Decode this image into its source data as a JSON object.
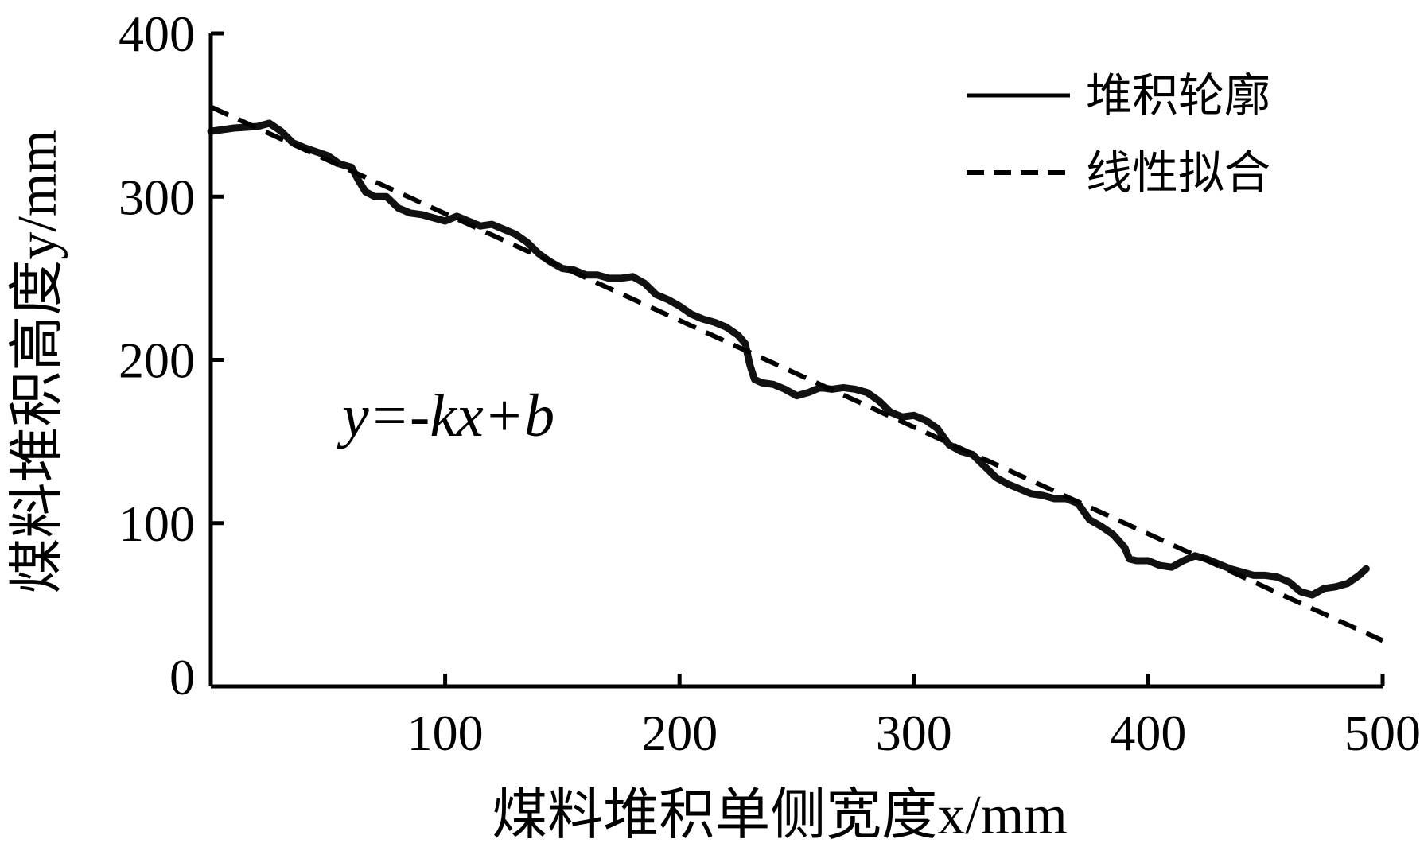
{
  "chart_data": {
    "type": "line",
    "title": "",
    "xlabel": "煤料堆积单侧宽度x/mm",
    "ylabel": "煤料堆积高度y/mm",
    "xlim": [
      0,
      500
    ],
    "ylim": [
      0,
      400
    ],
    "x_ticks": [
      100,
      200,
      300,
      400,
      500
    ],
    "y_ticks": [
      0,
      100,
      200,
      300,
      400
    ],
    "x_tick_labels": [
      "100",
      "200",
      "300",
      "400",
      "500"
    ],
    "y_tick_labels": [
      "0",
      "100",
      "200",
      "300",
      "400"
    ],
    "grid": false,
    "legend_position": "top-right",
    "annotation": "y=-kx+b",
    "series": [
      {
        "name": "堆积轮廓",
        "style": "solid",
        "color": "#111111",
        "x": [
          0,
          10,
          20,
          25,
          30,
          35,
          40,
          50,
          55,
          60,
          63,
          66,
          70,
          75,
          80,
          85,
          90,
          100,
          105,
          110,
          115,
          120,
          125,
          130,
          135,
          140,
          145,
          150,
          155,
          160,
          165,
          170,
          175,
          180,
          185,
          190,
          195,
          200,
          205,
          210,
          215,
          220,
          225,
          228,
          230,
          232,
          235,
          240,
          245,
          250,
          255,
          260,
          265,
          270,
          275,
          280,
          285,
          290,
          295,
          300,
          305,
          310,
          315,
          320,
          325,
          330,
          335,
          340,
          345,
          350,
          355,
          360,
          365,
          370,
          375,
          380,
          385,
          390,
          392,
          395,
          400,
          405,
          410,
          415,
          420,
          425,
          430,
          435,
          440,
          445,
          450,
          455,
          460,
          465,
          470,
          475,
          480,
          485,
          490,
          493
        ],
        "y": [
          340,
          342,
          343,
          345,
          340,
          333,
          330,
          325,
          320,
          318,
          310,
          303,
          300,
          300,
          293,
          290,
          289,
          285,
          288,
          285,
          282,
          283,
          280,
          277,
          272,
          265,
          260,
          256,
          255,
          252,
          252,
          250,
          250,
          251,
          247,
          240,
          237,
          233,
          228,
          225,
          223,
          220,
          215,
          210,
          197,
          188,
          186,
          185,
          182,
          178,
          180,
          183,
          182,
          183,
          182,
          180,
          175,
          168,
          165,
          166,
          163,
          158,
          148,
          144,
          142,
          135,
          128,
          124,
          121,
          118,
          117,
          115,
          115,
          112,
          102,
          98,
          93,
          85,
          78,
          77,
          77,
          74,
          73,
          77,
          80,
          78,
          75,
          72,
          70,
          68,
          68,
          67,
          64,
          58,
          56,
          60,
          61,
          63,
          68,
          72
        ]
      },
      {
        "name": "线性拟合",
        "style": "dashed",
        "color": "#000000",
        "x": [
          0,
          500
        ],
        "y": [
          355,
          28
        ]
      }
    ]
  }
}
